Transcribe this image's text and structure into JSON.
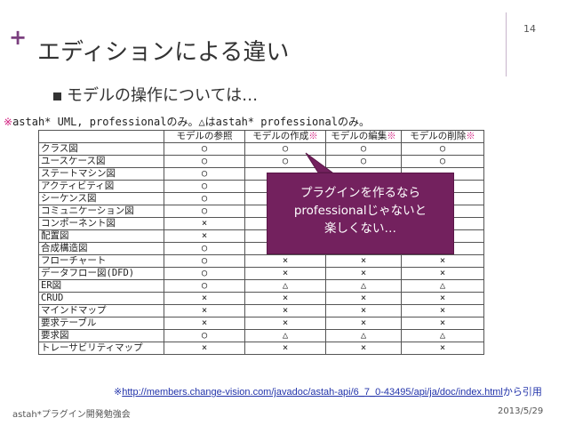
{
  "header": {
    "plus": "+",
    "page_number": "14"
  },
  "title": "エディションによる違い",
  "bullet": "モデルの操作については…",
  "note": {
    "text": "astah* UML, professionalのみ。△はastah* professionalのみ。",
    "mark": "※"
  },
  "table": {
    "headers": [
      "",
      "モデルの参照",
      "モデルの作成",
      "モデルの編集",
      "モデルの削除"
    ],
    "header_marks": [
      "",
      "",
      "※",
      "※",
      "※"
    ],
    "rows": [
      [
        "クラス図",
        "○",
        "○",
        "○",
        "○"
      ],
      [
        "ユースケース図",
        "○",
        "○",
        "○",
        "○"
      ],
      [
        "ステートマシン図",
        "○",
        "",
        "",
        ""
      ],
      [
        "アクティビティ図",
        "○",
        "",
        "",
        ""
      ],
      [
        "シーケンス図",
        "○",
        "",
        "",
        ""
      ],
      [
        "コミュニケーション図",
        "○",
        "",
        "",
        ""
      ],
      [
        "コンポーネント図",
        "×",
        "",
        "",
        ""
      ],
      [
        "配置図",
        "×",
        "",
        "",
        ""
      ],
      [
        "合成構造図",
        "○",
        "○",
        "○",
        "○"
      ],
      [
        "フローチャート",
        "○",
        "×",
        "×",
        "×"
      ],
      [
        "データフロー図(DFD)",
        "○",
        "×",
        "×",
        "×"
      ],
      [
        "ER図",
        "○",
        "△",
        "△",
        "△"
      ],
      [
        "CRUD",
        "×",
        "×",
        "×",
        "×"
      ],
      [
        "マインドマップ",
        "×",
        "×",
        "×",
        "×"
      ],
      [
        "要求テーブル",
        "×",
        "×",
        "×",
        "×"
      ],
      [
        "要求図",
        "○",
        "△",
        "△",
        "△"
      ],
      [
        "トレーサビリティマップ",
        "×",
        "×",
        "×",
        "×"
      ]
    ]
  },
  "callout": {
    "lines": [
      "プラグインを作るなら",
      "professionalじゃないと",
      "楽しくない…"
    ],
    "color": "#73215e"
  },
  "source": {
    "mark": "※",
    "url": "http://members.change-vision.com/javadoc/astah-api/6_7_0-43495/api/ja/doc/index.html",
    "suffix": "から引用"
  },
  "footer": {
    "left": "astah*プラグイン開発勉強会",
    "right": "2013/5/29"
  },
  "colors": {
    "accent": "#7b3f7f",
    "mark": "#d32080",
    "link": "#2233aa"
  }
}
